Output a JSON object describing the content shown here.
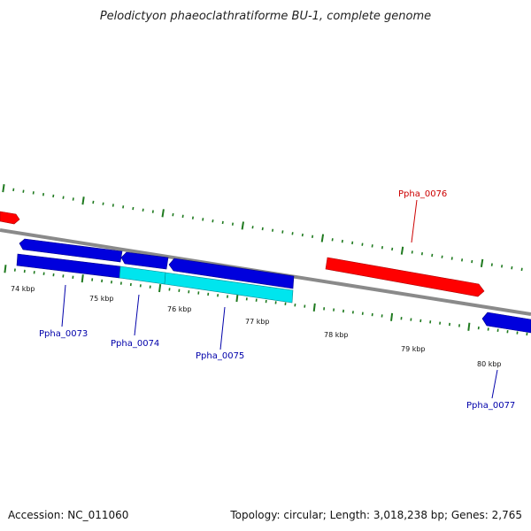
{
  "title": "Pelodictyon phaeoclathratiforme BU-1, complete genome",
  "footer": {
    "accession": "Accession: NC_011060",
    "summary": "Topology: circular; Length: 3,018,238 bp; Genes: 2,765"
  },
  "colors": {
    "backbone": "#8a8a8a",
    "tick": "#1f7a1f",
    "forward_gene": "#ff0000",
    "reverse_gene": "#0000dd",
    "cyan_gene": "#00e5ee",
    "label_red": "#cc0000",
    "label_blue": "#0000aa"
  },
  "kbp_labels": [
    "74 kbp",
    "75 kbp",
    "76 kbp",
    "77 kbp",
    "78 kbp",
    "79 kbp",
    "80 kbp"
  ],
  "gene_labels": [
    "Ppha_0073",
    "Ppha_0074",
    "Ppha_0075",
    "Ppha_0076",
    "Ppha_0077"
  ]
}
